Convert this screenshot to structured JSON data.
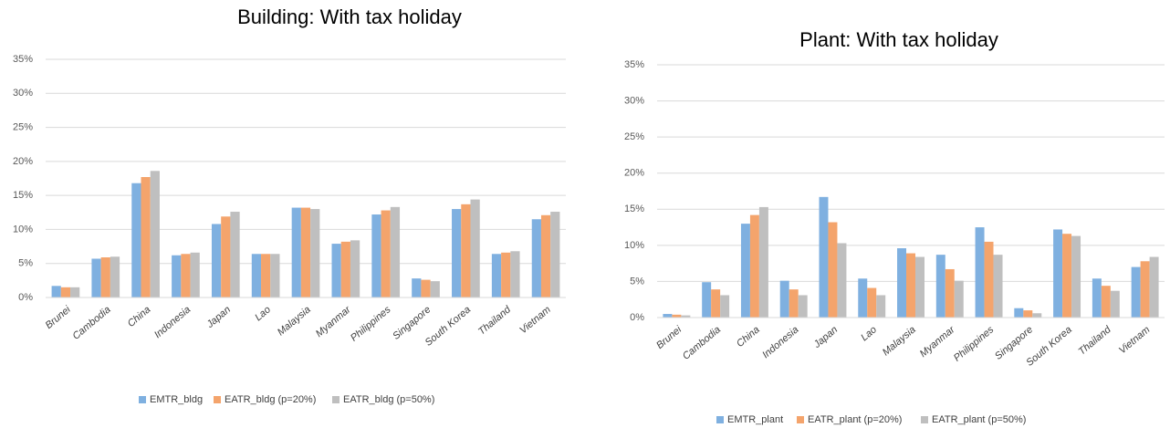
{
  "chart_data": [
    {
      "type": "bar",
      "title": "Building: With tax holiday",
      "categories": [
        "Brunei",
        "Cambodia",
        "China",
        "Indonesia",
        "Japan",
        "Lao",
        "Malaysia",
        "Myanmar",
        "Philippines",
        "Singapore",
        "South Korea",
        "Thailand",
        "Vietnam"
      ],
      "series": [
        {
          "name": "EMTR_bldg",
          "color": "#7fb0e0",
          "values": [
            1.7,
            5.7,
            16.8,
            6.2,
            10.8,
            6.4,
            13.2,
            7.9,
            12.2,
            2.8,
            13.0,
            6.4,
            11.5
          ]
        },
        {
          "name": "EATR_bldg (p=20%)",
          "color": "#f4a46c",
          "values": [
            1.5,
            5.9,
            17.7,
            6.4,
            11.9,
            6.4,
            13.2,
            8.2,
            12.8,
            2.6,
            13.7,
            6.6,
            12.1
          ]
        },
        {
          "name": "EATR_bldg (p=50%)",
          "color": "#bfbfbf",
          "values": [
            1.5,
            6.0,
            18.6,
            6.6,
            12.6,
            6.4,
            13.0,
            8.4,
            13.3,
            2.4,
            14.4,
            6.8,
            12.6
          ]
        }
      ],
      "ylim": [
        0,
        35
      ],
      "yticks": [
        {
          "value": 0,
          "label": "0%"
        },
        {
          "value": 5,
          "label": "5%"
        },
        {
          "value": 10,
          "label": "10%"
        },
        {
          "value": 15,
          "label": "15%"
        },
        {
          "value": 20,
          "label": "20%"
        },
        {
          "value": 25,
          "label": "25%"
        },
        {
          "value": 30,
          "label": "30%"
        },
        {
          "value": 35,
          "label": "35%"
        }
      ],
      "grid": true,
      "legend": "bottom"
    },
    {
      "type": "bar",
      "title": "Plant: With tax holiday",
      "categories": [
        "Brunei",
        "Cambodia",
        "China",
        "Indonesia",
        "Japan",
        "Lao",
        "Malaysia",
        "Myanmar",
        "Philippines",
        "Singapore",
        "South Korea",
        "Thailand",
        "Vietnam"
      ],
      "series": [
        {
          "name": "EMTR_plant",
          "color": "#7fb0e0",
          "values": [
            0.5,
            4.9,
            13.0,
            5.1,
            16.7,
            5.4,
            9.6,
            8.7,
            12.5,
            1.3,
            12.2,
            5.4,
            7.0
          ]
        },
        {
          "name": "EATR_plant (p=20%)",
          "color": "#f4a46c",
          "values": [
            0.4,
            3.9,
            14.2,
            3.9,
            13.2,
            4.1,
            8.9,
            6.7,
            10.5,
            1.0,
            11.6,
            4.4,
            7.8
          ]
        },
        {
          "name": "EATR_plant (p=50%)",
          "color": "#bfbfbf",
          "values": [
            0.3,
            3.1,
            15.3,
            3.1,
            10.3,
            3.1,
            8.4,
            5.1,
            8.7,
            0.6,
            11.3,
            3.7,
            8.4
          ]
        }
      ],
      "ylim": [
        0,
        35
      ],
      "yticks": [
        {
          "value": 0,
          "label": "0%"
        },
        {
          "value": 5,
          "label": "5%"
        },
        {
          "value": 10,
          "label": "10%"
        },
        {
          "value": 15,
          "label": "15%"
        },
        {
          "value": 20,
          "label": "20%"
        },
        {
          "value": 25,
          "label": "25%"
        },
        {
          "value": 30,
          "label": "30%"
        },
        {
          "value": 35,
          "label": "35%"
        }
      ],
      "grid": true,
      "legend": "bottom"
    }
  ]
}
